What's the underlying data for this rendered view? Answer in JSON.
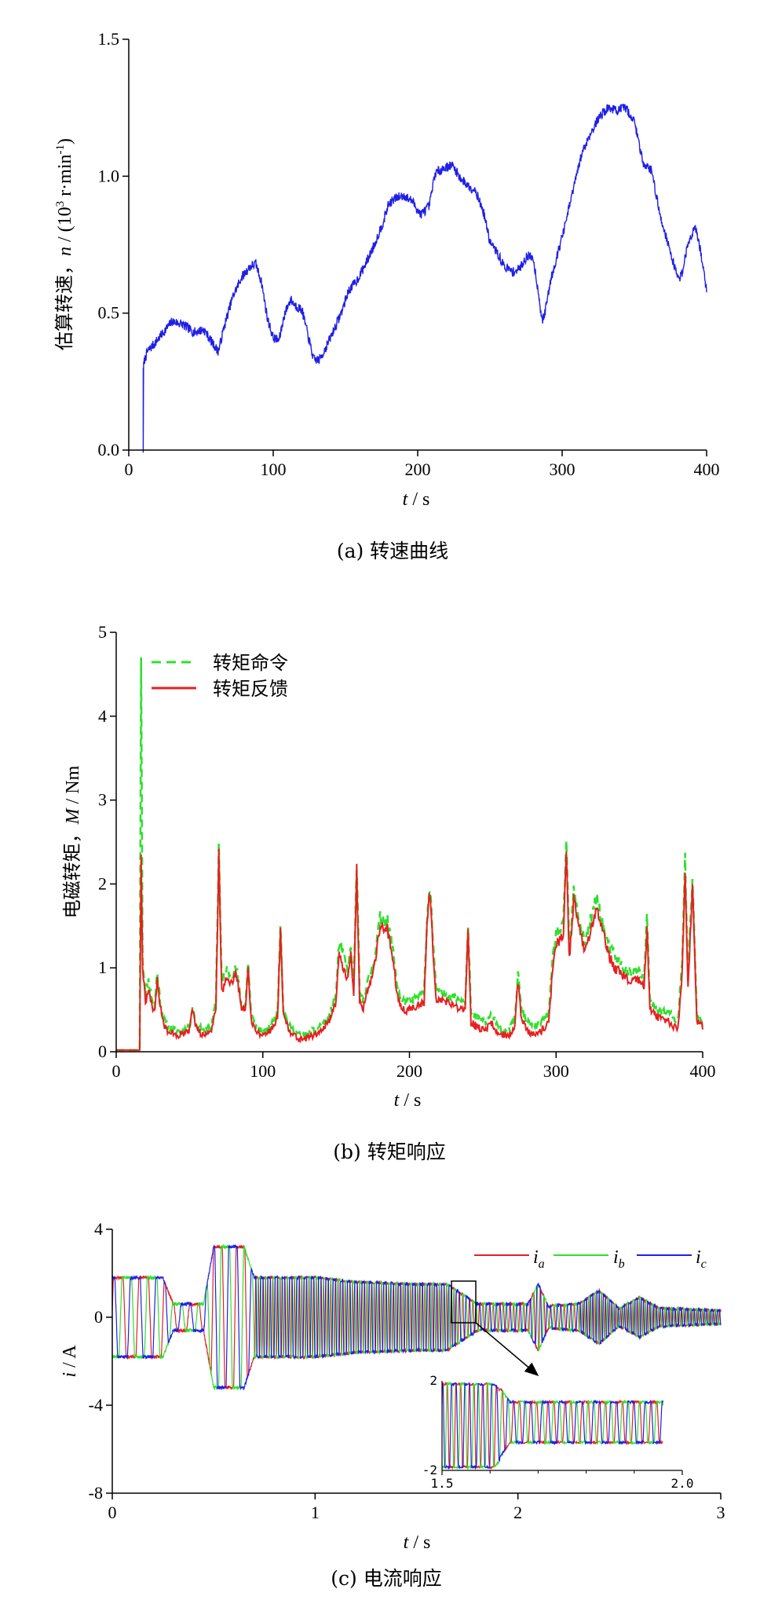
{
  "chart_data": [
    {
      "type": "line",
      "ylabel": "估算转速，n / (10³ r·min⁻¹)",
      "xlabel": "t / s",
      "caption": "(a) 转速曲线",
      "xlim": [
        0,
        400
      ],
      "ylim": [
        0,
        1.5
      ],
      "xticks": [
        "0",
        "100",
        "200",
        "300",
        "400"
      ],
      "yticks": [
        "0.0",
        "0.5",
        "1.0",
        "1.5"
      ],
      "series": [
        {
          "color": "#1f1fe6",
          "x": [
            10,
            10,
            11,
            13,
            18,
            24,
            30,
            37,
            45,
            52,
            58,
            62,
            66,
            72,
            78,
            84,
            88,
            92,
            96,
            100,
            104,
            108,
            112,
            115,
            120,
            124,
            128,
            132,
            137,
            142,
            147,
            152,
            158,
            164,
            170,
            176,
            180,
            185,
            190,
            196,
            202,
            208,
            212,
            218,
            224,
            230,
            236,
            240,
            246,
            250,
            255,
            260,
            266,
            270,
            276,
            280,
            284,
            286,
            288,
            292,
            296,
            302,
            308,
            314,
            320,
            326,
            332,
            338,
            344,
            350,
            356,
            362,
            368,
            372,
            376,
            381,
            383,
            387,
            392,
            396,
            400
          ],
          "y": [
            0.0,
            0.3,
            0.33,
            0.36,
            0.39,
            0.43,
            0.47,
            0.46,
            0.43,
            0.44,
            0.39,
            0.36,
            0.45,
            0.56,
            0.63,
            0.67,
            0.68,
            0.61,
            0.48,
            0.41,
            0.4,
            0.5,
            0.55,
            0.53,
            0.51,
            0.42,
            0.33,
            0.33,
            0.38,
            0.44,
            0.5,
            0.58,
            0.62,
            0.68,
            0.75,
            0.83,
            0.9,
            0.92,
            0.93,
            0.91,
            0.86,
            0.89,
            1.01,
            1.03,
            1.04,
            0.99,
            0.96,
            0.95,
            0.86,
            0.76,
            0.72,
            0.67,
            0.65,
            0.66,
            0.71,
            0.7,
            0.56,
            0.47,
            0.5,
            0.62,
            0.7,
            0.82,
            0.96,
            1.09,
            1.16,
            1.22,
            1.25,
            1.24,
            1.25,
            1.2,
            1.05,
            1.02,
            0.85,
            0.78,
            0.7,
            0.62,
            0.65,
            0.75,
            0.82,
            0.72,
            0.58
          ]
        }
      ]
    },
    {
      "type": "line",
      "ylabel": "电磁转矩，M / Nm",
      "xlabel": "t / s",
      "caption": "(b) 转矩响应",
      "xlim": [
        0,
        400
      ],
      "ylim": [
        0,
        5
      ],
      "xticks": [
        "0",
        "100",
        "200",
        "300",
        "400"
      ],
      "yticks": [
        "0",
        "1",
        "2",
        "3",
        "4",
        "5"
      ],
      "legend": {
        "position": "top-left",
        "entries": [
          "转矩命令",
          "转矩反馈"
        ]
      },
      "series": [
        {
          "name": "转矩命令",
          "color": "#2ee02e",
          "dashed": true,
          "x": [
            0,
            16,
            17,
            18,
            20,
            22,
            26,
            28,
            30,
            32,
            35,
            40,
            45,
            50,
            52,
            55,
            60,
            65,
            68,
            70,
            72,
            75,
            78,
            82,
            85,
            88,
            90,
            92,
            95,
            100,
            105,
            110,
            112,
            114,
            118,
            125,
            135,
            145,
            150,
            152,
            155,
            158,
            160,
            162,
            164,
            166,
            168,
            172,
            176,
            180,
            185,
            188,
            192,
            195,
            200,
            205,
            210,
            212,
            214,
            216,
            218,
            222,
            230,
            238,
            240,
            242,
            246,
            252,
            256,
            260,
            268,
            272,
            274,
            276,
            280,
            286,
            290,
            295,
            298,
            300,
            305,
            307,
            309,
            312,
            316,
            320,
            324,
            328,
            332,
            336,
            340,
            346,
            350,
            356,
            360,
            362,
            364,
            370,
            378,
            383,
            386,
            388,
            390,
            393,
            396,
            400
          ],
          "y": [
            0.02,
            0.02,
            4.7,
            1.1,
            0.7,
            0.85,
            0.5,
            0.95,
            0.6,
            0.4,
            0.3,
            0.25,
            0.25,
            0.3,
            0.55,
            0.3,
            0.25,
            0.3,
            0.6,
            2.45,
            0.8,
            1.0,
            0.9,
            1.0,
            0.6,
            0.55,
            1.05,
            0.45,
            0.3,
            0.25,
            0.3,
            0.45,
            1.55,
            0.5,
            0.3,
            0.2,
            0.25,
            0.4,
            0.7,
            1.3,
            1.15,
            0.95,
            1.25,
            0.75,
            2.25,
            0.7,
            0.6,
            0.85,
            1.1,
            1.6,
            1.55,
            1.3,
            0.75,
            0.6,
            0.6,
            0.65,
            0.7,
            1.6,
            2.0,
            1.35,
            0.75,
            0.7,
            0.65,
            0.6,
            1.55,
            0.45,
            0.4,
            0.35,
            0.45,
            0.3,
            0.25,
            0.4,
            0.95,
            0.55,
            0.35,
            0.3,
            0.35,
            0.45,
            1.15,
            1.4,
            1.5,
            2.55,
            1.2,
            1.9,
            1.55,
            1.3,
            1.6,
            1.85,
            1.5,
            1.25,
            1.15,
            1.0,
            0.95,
            0.95,
            0.85,
            1.6,
            0.6,
            0.5,
            0.45,
            0.35,
            1.05,
            2.3,
            0.85,
            2.1,
            0.45,
            0.35
          ]
        },
        {
          "name": "转矩反馈",
          "color": "#e62020",
          "dashed": false,
          "x": [
            0,
            16,
            17,
            18,
            20,
            22,
            26,
            28,
            30,
            32,
            35,
            40,
            45,
            50,
            52,
            55,
            60,
            65,
            68,
            70,
            72,
            75,
            78,
            82,
            85,
            88,
            90,
            92,
            95,
            100,
            105,
            110,
            112,
            114,
            118,
            125,
            135,
            145,
            150,
            152,
            155,
            158,
            160,
            162,
            164,
            166,
            168,
            172,
            176,
            180,
            185,
            188,
            192,
            195,
            200,
            205,
            210,
            212,
            214,
            216,
            218,
            222,
            230,
            238,
            240,
            242,
            246,
            252,
            256,
            260,
            268,
            272,
            274,
            276,
            280,
            286,
            290,
            295,
            298,
            300,
            305,
            307,
            309,
            312,
            316,
            320,
            324,
            328,
            332,
            336,
            340,
            346,
            350,
            356,
            360,
            362,
            364,
            370,
            378,
            383,
            386,
            388,
            390,
            393,
            396,
            400
          ],
          "y": [
            0.02,
            0.02,
            2.35,
            1.0,
            0.6,
            0.75,
            0.45,
            0.85,
            0.55,
            0.35,
            0.25,
            0.2,
            0.2,
            0.25,
            0.5,
            0.25,
            0.2,
            0.25,
            0.55,
            2.35,
            0.7,
            0.9,
            0.8,
            0.95,
            0.55,
            0.5,
            1.0,
            0.4,
            0.25,
            0.2,
            0.25,
            0.4,
            1.45,
            0.45,
            0.25,
            0.15,
            0.2,
            0.35,
            0.6,
            1.2,
            1.0,
            0.85,
            1.15,
            0.65,
            2.15,
            0.6,
            0.5,
            0.75,
            1.0,
            1.5,
            1.45,
            1.2,
            0.65,
            0.5,
            0.5,
            0.55,
            0.6,
            1.5,
            1.9,
            1.25,
            0.65,
            0.6,
            0.55,
            0.5,
            1.45,
            0.35,
            0.3,
            0.25,
            0.35,
            0.2,
            0.2,
            0.3,
            0.85,
            0.45,
            0.25,
            0.2,
            0.25,
            0.35,
            1.05,
            1.3,
            1.35,
            2.45,
            1.1,
            1.8,
            1.45,
            1.2,
            1.5,
            1.75,
            1.4,
            1.15,
            1.0,
            0.9,
            0.85,
            0.85,
            0.75,
            1.5,
            0.5,
            0.4,
            0.35,
            0.25,
            0.95,
            2.2,
            0.75,
            2.0,
            0.35,
            0.3
          ]
        }
      ]
    },
    {
      "type": "line",
      "ylabel": "i / A",
      "xlabel": "t / s",
      "caption": "(c) 电流响应",
      "xlim": [
        0,
        3
      ],
      "ylim": [
        -8,
        4
      ],
      "xticks": [
        "0",
        "1",
        "2",
        "3"
      ],
      "yticks": [
        "4",
        "0",
        "-4",
        "-8"
      ],
      "legend": {
        "position": "top-right",
        "entries": [
          "i_a",
          "i_b",
          "i_c"
        ]
      },
      "series": [
        {
          "name": "i_a",
          "color": "#e62020"
        },
        {
          "name": "i_b",
          "color": "#2ee02e"
        },
        {
          "name": "i_c",
          "color": "#1f1fe6"
        }
      ],
      "amplitude_envelope": {
        "t": [
          0,
          0.25,
          0.3,
          0.45,
          0.5,
          0.65,
          0.7,
          1.0,
          1.2,
          1.5,
          1.65,
          1.7,
          1.8,
          2.05,
          2.1,
          2.15,
          2.3,
          2.4,
          2.5,
          2.6,
          2.7,
          3.0
        ],
        "amp": [
          1.8,
          1.8,
          0.6,
          0.6,
          3.2,
          3.2,
          1.8,
          1.8,
          1.6,
          1.5,
          1.5,
          1.2,
          0.6,
          0.6,
          1.5,
          0.5,
          0.6,
          1.2,
          0.4,
          0.9,
          0.4,
          0.3
        ]
      },
      "inset": {
        "xlim": [
          1.5,
          2.0
        ],
        "ylim": [
          -2,
          2
        ],
        "xticks": [
          "1.5",
          "2.0"
        ],
        "yticks": [
          "2",
          "-2"
        ]
      }
    }
  ],
  "text": {
    "ylabel_a_prefix": "估算转速，",
    "ylabel_a_var": "n",
    "ylabel_a_unit": " / (10",
    "ylabel_a_sup": "3",
    "ylabel_a_unit2": " r·min",
    "ylabel_a_sup2": "-1",
    "ylabel_a_end": ")",
    "ylabel_b_prefix": "电磁转矩，",
    "ylabel_b_var": "M",
    "ylabel_b_unit": " / Nm",
    "ylabel_c_var": "i",
    "ylabel_c_unit": " / A",
    "xlabel_var": "t",
    "xlabel_unit": " / s"
  }
}
